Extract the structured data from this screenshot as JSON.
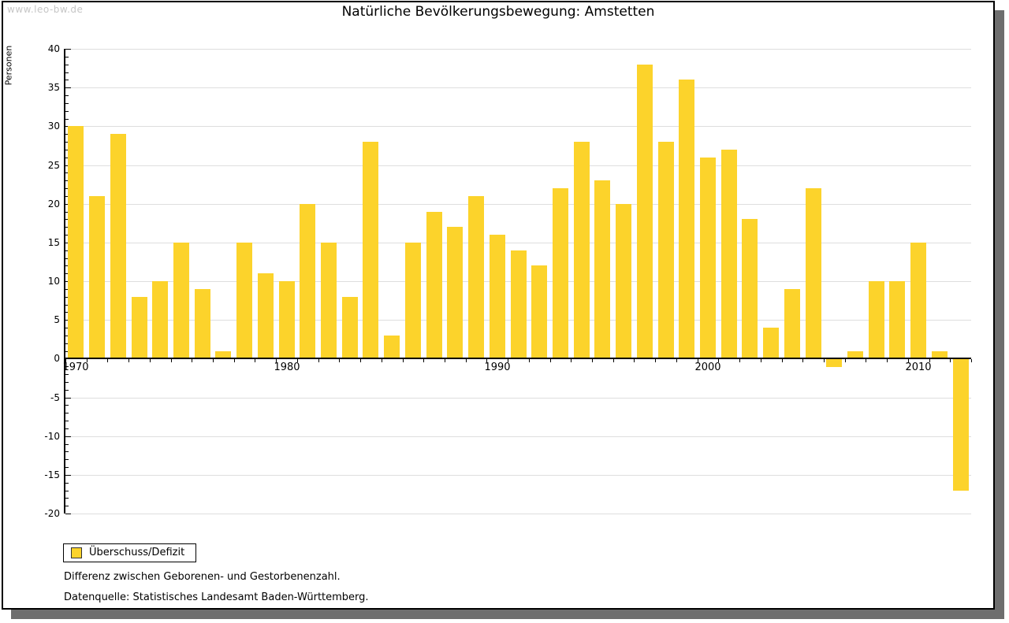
{
  "watermark": "www.leo-bw.de",
  "legend": {
    "label": "Überschuss/Defizit"
  },
  "notes": {
    "line1": "Differenz zwischen Geborenen- und Gestorbenenzahl.",
    "line2": "Datenquelle: Statistisches Landesamt Baden-Württemberg."
  },
  "colors": {
    "bar": "#FCD32B",
    "grid": "#DEDEDE",
    "axis": "#000000",
    "watermark": "#C6C6C6",
    "shadow": "#6E6E6E",
    "legend_swatch_border": "#333333"
  },
  "chart_data": {
    "type": "bar",
    "title": "Natürliche Bevölkerungsbewegung: Amstetten",
    "xlabel": "",
    "ylabel": "Personen",
    "ylim": [
      -20,
      40
    ],
    "yticks": [
      40,
      35,
      30,
      25,
      20,
      15,
      10,
      5,
      0,
      -5,
      -10,
      -15,
      -20
    ],
    "xticks": [
      1970,
      1980,
      1990,
      2000,
      2010
    ],
    "grid": true,
    "legend_position": "bottom-left",
    "series_name": "Überschuss/Defizit",
    "x": [
      1970,
      1971,
      1972,
      1973,
      1974,
      1975,
      1976,
      1977,
      1978,
      1979,
      1980,
      1981,
      1982,
      1983,
      1984,
      1985,
      1986,
      1987,
      1988,
      1989,
      1990,
      1991,
      1992,
      1993,
      1994,
      1995,
      1996,
      1997,
      1998,
      1999,
      2000,
      2001,
      2002,
      2003,
      2004,
      2005,
      2006,
      2007,
      2008,
      2009,
      2010,
      2011,
      2012
    ],
    "values": [
      30,
      21,
      29,
      8,
      10,
      15,
      9,
      1,
      15,
      11,
      10,
      20,
      15,
      8,
      28,
      3,
      15,
      19,
      17,
      21,
      16,
      14,
      12,
      22,
      28,
      23,
      20,
      38,
      28,
      36,
      26,
      27,
      18,
      4,
      9,
      22,
      -1,
      1,
      10,
      10,
      15,
      1,
      -17
    ]
  }
}
